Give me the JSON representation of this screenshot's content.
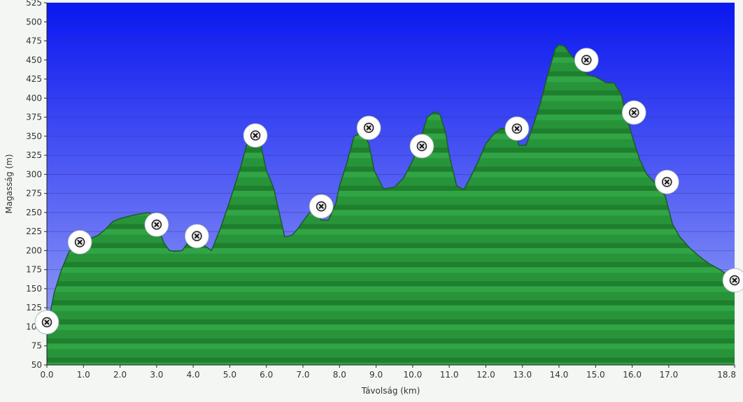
{
  "chart_data": {
    "type": "area",
    "title": "",
    "xlabel": "Távolság  (km)",
    "ylabel": "Magasság (m)",
    "xlim": [
      0,
      18.8
    ],
    "ylim": [
      50,
      525
    ],
    "grid": true,
    "x_ticks": [
      0.0,
      1.0,
      2.0,
      3.0,
      4.0,
      5.0,
      6.0,
      7.0,
      8.0,
      9.0,
      10.0,
      11.0,
      12.0,
      13.0,
      14.0,
      15.0,
      16.0,
      17.0,
      18.8
    ],
    "x_tick_labels": [
      "0.0",
      "1.0",
      "2.0",
      "3.0",
      "4.0",
      "5.0",
      "6.0",
      "7.0",
      "8.0",
      "9.0",
      "10.0",
      "11.0",
      "12.0",
      "13.0",
      "14.0",
      "15.0",
      "16.0",
      "17.0",
      "18.8"
    ],
    "y_ticks": [
      50,
      75,
      100,
      125,
      150,
      175,
      200,
      225,
      250,
      275,
      300,
      325,
      350,
      375,
      400,
      425,
      450,
      475,
      500,
      525
    ],
    "y_tick_labels": [
      "50",
      "75",
      "100",
      "125",
      "150",
      "175",
      "200",
      "225",
      "250",
      "275",
      "300",
      "325",
      "350",
      "375",
      "400",
      "425",
      "450",
      "475",
      "500",
      "525"
    ],
    "x": [
      0.0,
      0.1,
      0.2,
      0.4,
      0.6,
      0.8,
      1.0,
      1.2,
      1.4,
      1.6,
      1.8,
      2.0,
      2.4,
      2.8,
      3.0,
      3.2,
      3.35,
      3.5,
      3.7,
      3.85,
      4.0,
      4.2,
      4.5,
      4.75,
      5.0,
      5.3,
      5.5,
      5.7,
      5.85,
      6.0,
      6.2,
      6.5,
      6.7,
      6.85,
      7.1,
      7.3,
      7.5,
      7.7,
      7.9,
      8.0,
      8.2,
      8.4,
      8.65,
      8.8,
      8.95,
      9.2,
      9.5,
      9.75,
      10.0,
      10.15,
      10.25,
      10.4,
      10.6,
      10.75,
      10.9,
      11.0,
      11.2,
      11.4,
      11.6,
      11.8,
      12.0,
      12.2,
      12.4,
      12.8,
      12.9,
      13.1,
      13.3,
      13.5,
      13.7,
      13.9,
      14.0,
      14.15,
      14.3,
      14.45,
      14.6,
      14.8,
      15.0,
      15.3,
      15.4,
      15.5,
      15.7,
      15.85,
      16.0,
      16.2,
      16.4,
      16.6,
      16.9,
      17.1,
      17.3,
      17.6,
      17.9,
      18.1,
      18.4,
      18.6,
      18.8
    ],
    "values": [
      106,
      120,
      145,
      175,
      198,
      210,
      212,
      216,
      220,
      228,
      238,
      242,
      247,
      250,
      235,
      210,
      200,
      199,
      200,
      210,
      218,
      210,
      200,
      230,
      265,
      310,
      345,
      350,
      338,
      305,
      282,
      218,
      220,
      228,
      245,
      255,
      240,
      240,
      262,
      285,
      315,
      350,
      355,
      340,
      305,
      281,
      283,
      295,
      318,
      335,
      352,
      375,
      382,
      378,
      355,
      325,
      285,
      280,
      298,
      318,
      340,
      352,
      360,
      360,
      338,
      338,
      365,
      395,
      432,
      465,
      470,
      468,
      458,
      450,
      440,
      430,
      428,
      420,
      420,
      420,
      405,
      375,
      350,
      320,
      300,
      290,
      272,
      235,
      218,
      202,
      190,
      183,
      175,
      168,
      162
    ],
    "waypoints": [
      {
        "x": 0.0,
        "y": 106
      },
      {
        "x": 0.9,
        "y": 211
      },
      {
        "x": 3.0,
        "y": 234
      },
      {
        "x": 4.1,
        "y": 219
      },
      {
        "x": 5.7,
        "y": 351
      },
      {
        "x": 7.5,
        "y": 258
      },
      {
        "x": 8.8,
        "y": 361
      },
      {
        "x": 10.25,
        "y": 337
      },
      {
        "x": 12.85,
        "y": 360
      },
      {
        "x": 14.75,
        "y": 450
      },
      {
        "x": 16.05,
        "y": 381
      },
      {
        "x": 16.95,
        "y": 290
      },
      {
        "x": 18.8,
        "y": 161
      }
    ],
    "colors": {
      "fill_top": "#2e9e3f",
      "fill_bottom": "#1f7a2c",
      "outline": "#1d5a25",
      "bg_top": "#0a17f0",
      "bg_bottom": "#9ea8f7",
      "grid": "#2a2fa0",
      "marker_ring": "#ffffff"
    }
  }
}
